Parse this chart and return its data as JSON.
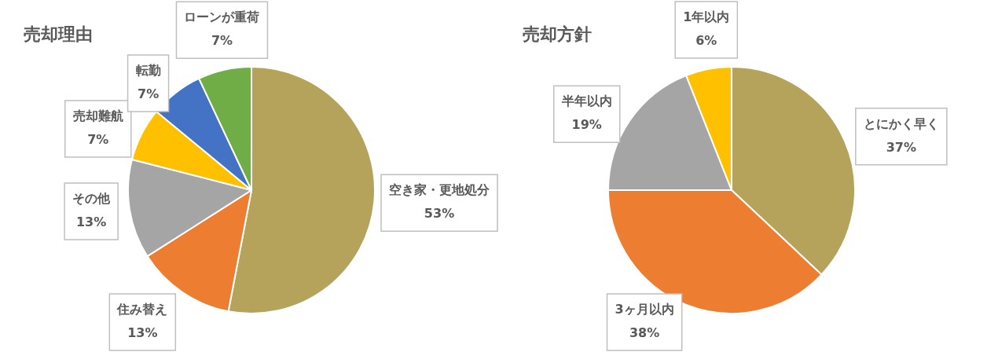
{
  "chart_data": [
    {
      "type": "pie",
      "title": "売却理由",
      "categories": [
        "空き家・更地処分",
        "住み替え",
        "その他",
        "売却難航",
        "転勤",
        "ローンが重荷"
      ],
      "values": [
        53,
        13,
        13,
        7,
        7,
        7
      ],
      "value_labels": [
        "53%",
        "13%",
        "13%",
        "7%",
        "7%",
        "7%"
      ],
      "colors": [
        "#b5a35c",
        "#ed7d31",
        "#a5a5a5",
        "#ffc000",
        "#4472c4",
        "#70ad47"
      ],
      "legend": false
    },
    {
      "type": "pie",
      "title": "売却方針",
      "categories": [
        "とにかく早く",
        "3ヶ月以内",
        "半年以内",
        "1年以内"
      ],
      "values": [
        37,
        38,
        19,
        6
      ],
      "value_labels": [
        "37%",
        "38%",
        "19%",
        "6%"
      ],
      "colors": [
        "#b5a35c",
        "#ed7d31",
        "#a5a5a5",
        "#ffc000"
      ],
      "legend": false
    }
  ]
}
